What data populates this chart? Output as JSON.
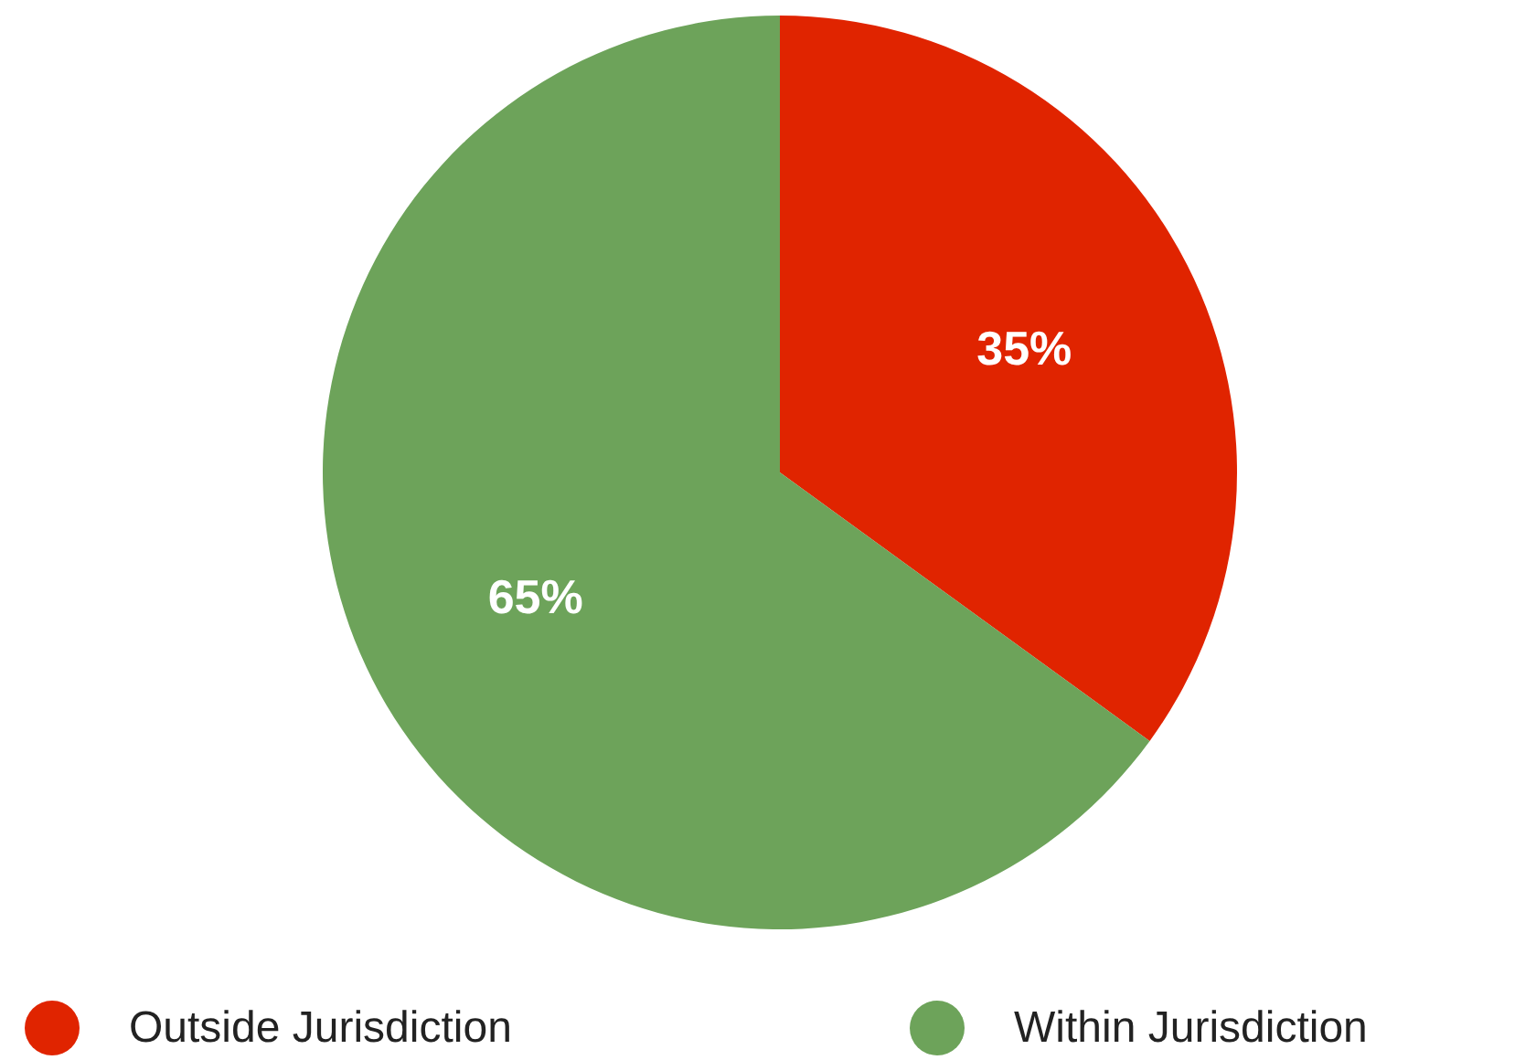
{
  "chart_data": {
    "type": "pie",
    "categories": [
      "Outside Jurisdiction",
      "Within Jurisdiction"
    ],
    "values": [
      35,
      65
    ],
    "colors": [
      "#e02400",
      "#6da35a"
    ],
    "value_labels": [
      "35%",
      "65%"
    ],
    "legend": "bottom"
  }
}
